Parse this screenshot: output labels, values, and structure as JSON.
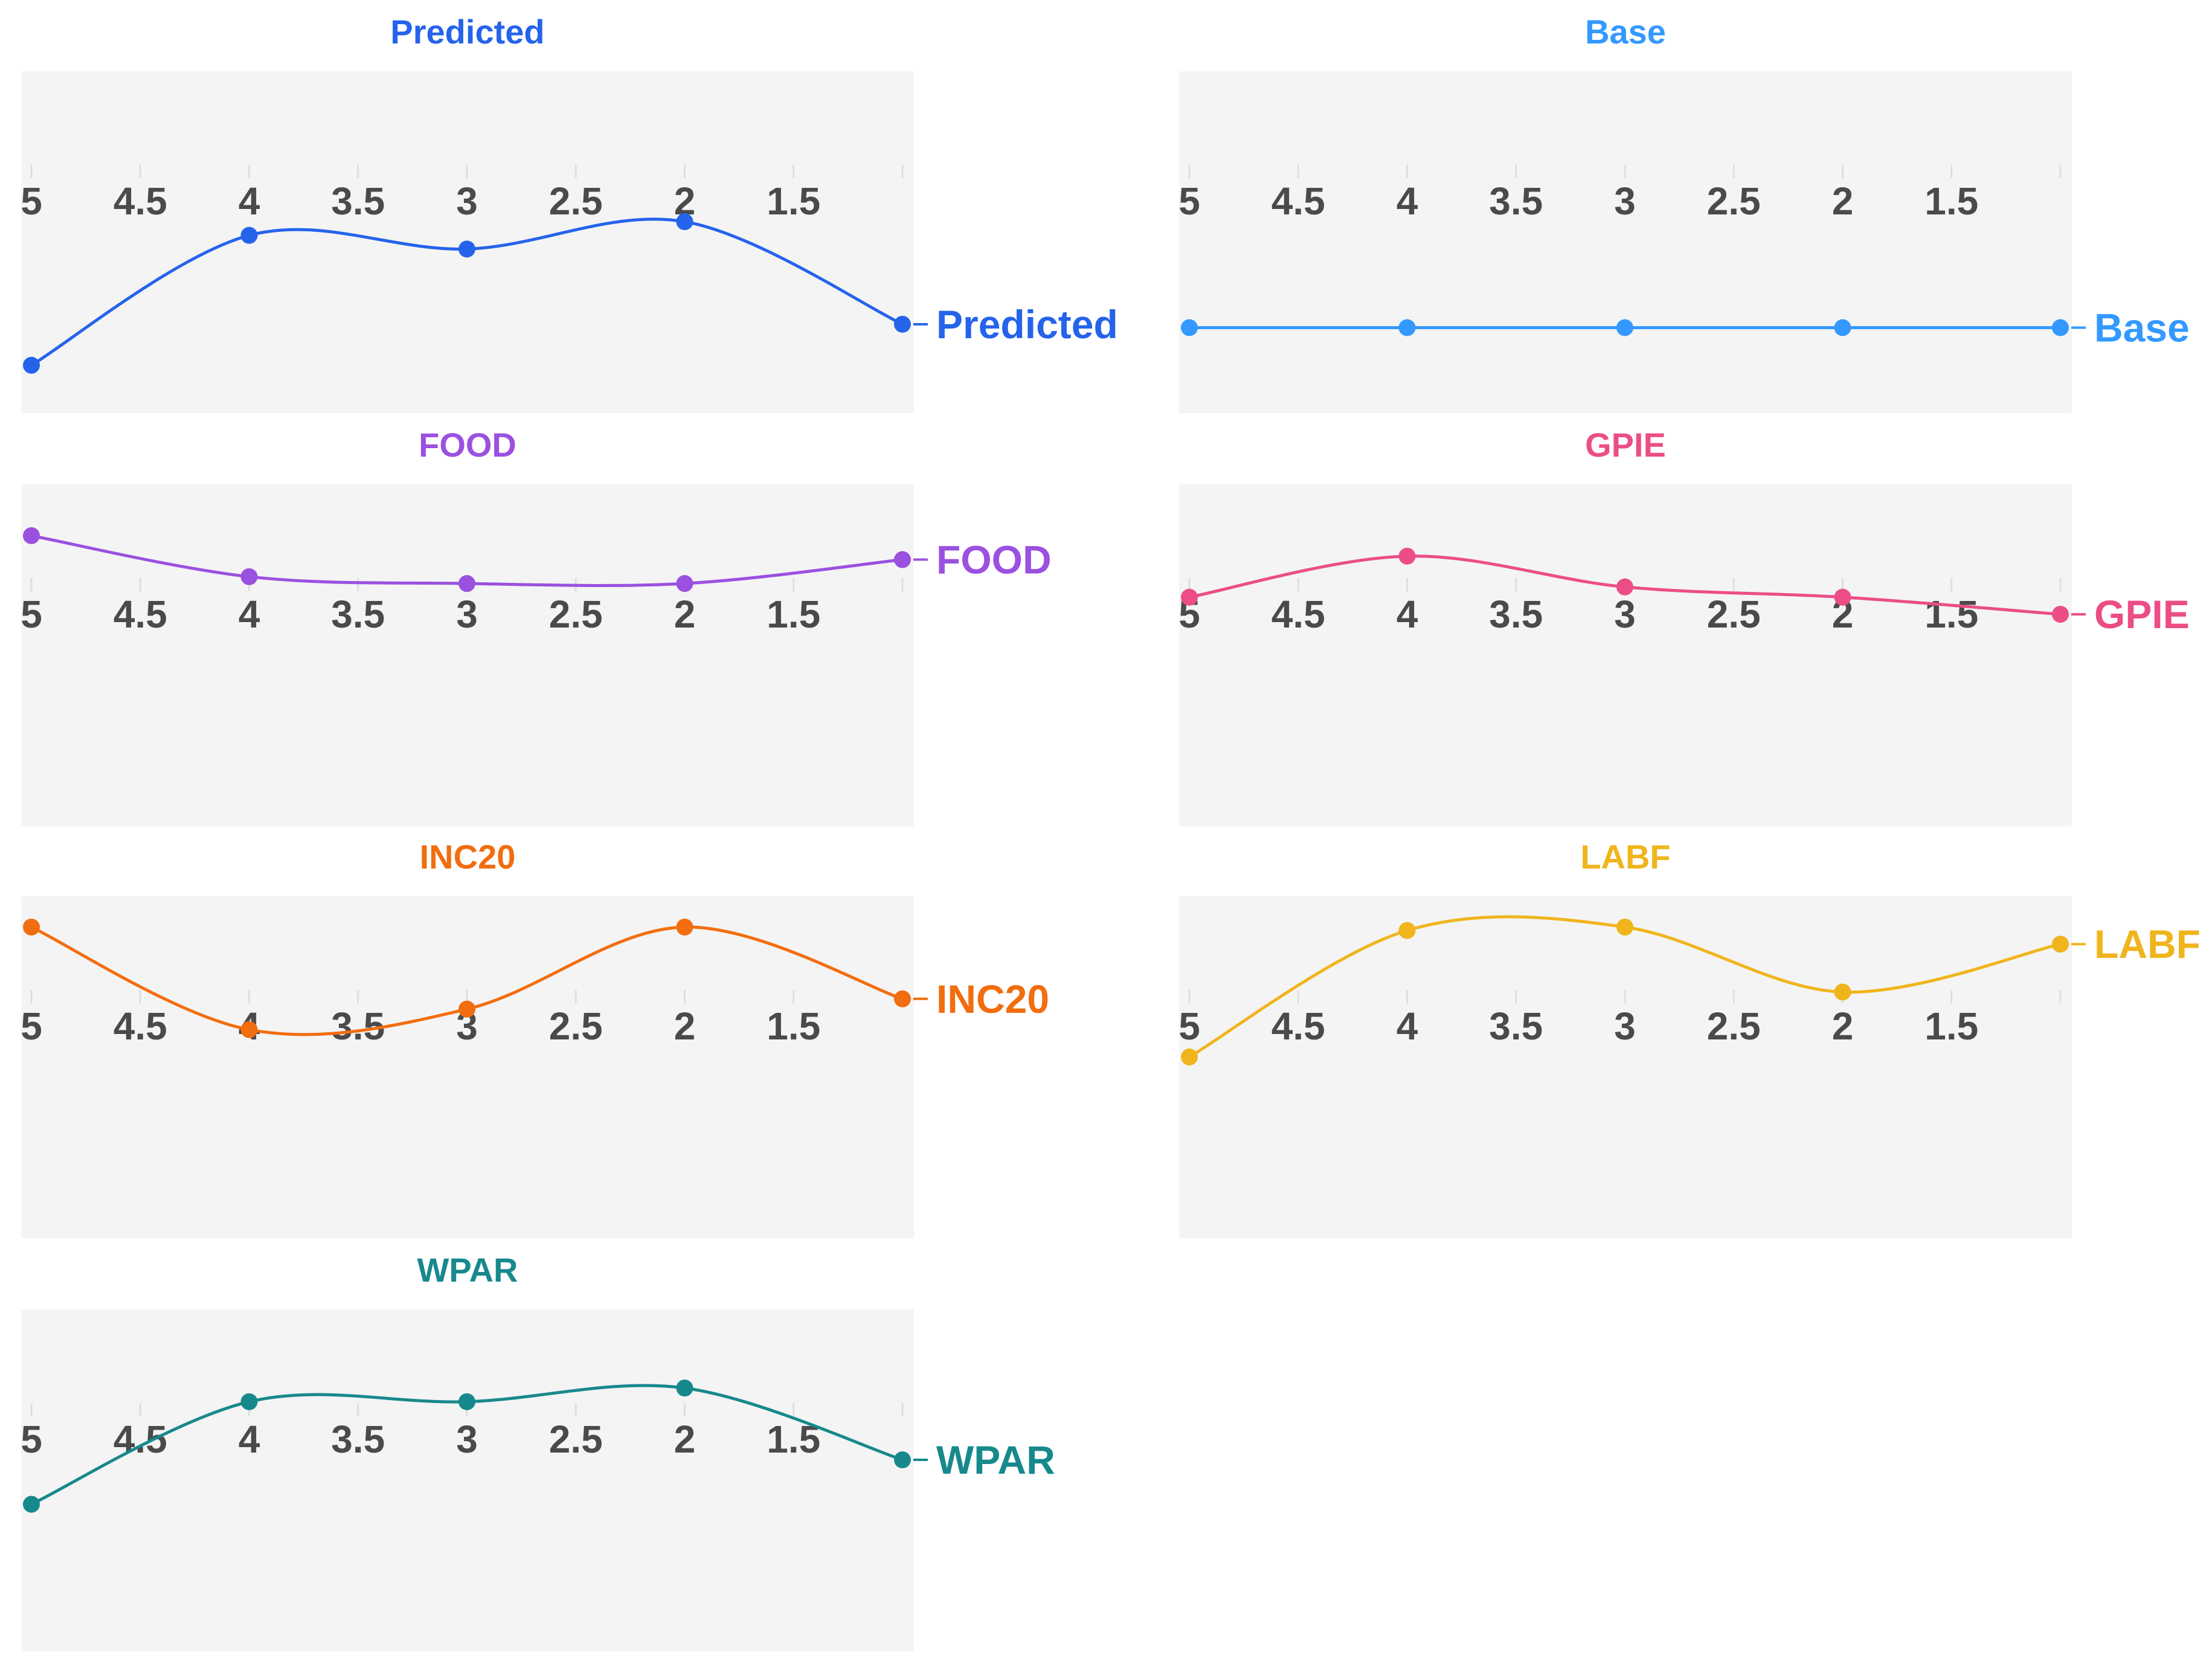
{
  "chart_data": [
    {
      "type": "line",
      "title": "Predicted",
      "series_label": "Predicted",
      "color": "#2563eb",
      "x_ticks": [
        "5",
        "4.5",
        "4",
        "3.5",
        "3",
        "2.5",
        "2",
        "1.5"
      ],
      "x_tick_values": [
        5,
        4.5,
        4,
        3.5,
        3,
        2.5,
        2,
        1.5
      ],
      "x_range": [
        5,
        1
      ],
      "x": [
        5,
        4,
        3,
        2,
        1
      ],
      "values": [
        0.14,
        0.52,
        0.48,
        0.56,
        0.26
      ],
      "ylim": [
        0,
        1
      ],
      "axis_position": 0.62
    },
    {
      "type": "line",
      "title": "Base",
      "series_label": "Base",
      "color": "#3399ff",
      "x_ticks": [
        "5",
        "4.5",
        "4",
        "3.5",
        "3",
        "2.5",
        "2",
        "1.5"
      ],
      "x_tick_values": [
        5,
        4.5,
        4,
        3.5,
        3,
        2.5,
        2,
        1.5
      ],
      "x_range": [
        5,
        1
      ],
      "x": [
        5,
        4,
        3,
        2,
        1
      ],
      "values": [
        0.25,
        0.25,
        0.25,
        0.25,
        0.25
      ],
      "ylim": [
        0,
        1
      ],
      "axis_position": 0.62
    },
    {
      "type": "line",
      "title": "FOOD",
      "series_label": "FOOD",
      "color": "#9b51e0",
      "x_ticks": [
        "5",
        "4.5",
        "4",
        "3.5",
        "3",
        "2.5",
        "2",
        "1.5"
      ],
      "x_tick_values": [
        5,
        4.5,
        4,
        3.5,
        3,
        2.5,
        2,
        1.5
      ],
      "x_range": [
        5,
        1
      ],
      "x": [
        5,
        4,
        3,
        2,
        1
      ],
      "values": [
        0.85,
        0.73,
        0.71,
        0.71,
        0.78
      ],
      "ylim": [
        0,
        1
      ],
      "axis_position": 0.62
    },
    {
      "type": "line",
      "title": "GPIE",
      "series_label": "GPIE",
      "color": "#ec4d86",
      "x_ticks": [
        "5",
        "4.5",
        "4",
        "3.5",
        "3",
        "2.5",
        "2",
        "1.5"
      ],
      "x_tick_values": [
        5,
        4.5,
        4,
        3.5,
        3,
        2.5,
        2,
        1.5
      ],
      "x_range": [
        5,
        1
      ],
      "x": [
        5,
        4,
        3,
        2,
        1
      ],
      "values": [
        0.67,
        0.79,
        0.7,
        0.67,
        0.62
      ],
      "ylim": [
        0,
        1
      ],
      "axis_position": 0.62
    },
    {
      "type": "line",
      "title": "INC20",
      "series_label": "INC20",
      "color": "#f26d0f",
      "x_ticks": [
        "5",
        "4.5",
        "4",
        "3.5",
        "3",
        "2.5",
        "2",
        "1.5"
      ],
      "x_tick_values": [
        5,
        4.5,
        4,
        3.5,
        3,
        2.5,
        2,
        1.5
      ],
      "x_range": [
        5,
        1
      ],
      "x": [
        5,
        4,
        3,
        2,
        1
      ],
      "values": [
        0.91,
        0.61,
        0.67,
        0.91,
        0.7
      ],
      "ylim": [
        0,
        1
      ],
      "axis_position": 0.62
    },
    {
      "type": "line",
      "title": "LABF",
      "series_label": "LABF",
      "color": "#f0b51c",
      "x_ticks": [
        "5",
        "4.5",
        "4",
        "3.5",
        "3",
        "2.5",
        "2",
        "1.5"
      ],
      "x_tick_values": [
        5,
        4.5,
        4,
        3.5,
        3,
        2.5,
        2,
        1.5
      ],
      "x_range": [
        5,
        1
      ],
      "x": [
        5,
        4,
        3,
        2,
        1
      ],
      "values": [
        0.53,
        0.9,
        0.91,
        0.72,
        0.86
      ],
      "ylim": [
        0,
        1
      ],
      "axis_position": 0.62
    },
    {
      "type": "line",
      "title": "WPAR",
      "series_label": "WPAR",
      "color": "#17898c",
      "x_ticks": [
        "5",
        "4.5",
        "4",
        "3.5",
        "3",
        "2.5",
        "2",
        "1.5"
      ],
      "x_tick_values": [
        5,
        4.5,
        4,
        3.5,
        3,
        2.5,
        2,
        1.5
      ],
      "x_range": [
        5,
        1
      ],
      "x": [
        5,
        4,
        3,
        2,
        1
      ],
      "values": [
        0.43,
        0.73,
        0.73,
        0.77,
        0.56
      ],
      "ylim": [
        0,
        1
      ],
      "axis_position": 0.62
    }
  ]
}
